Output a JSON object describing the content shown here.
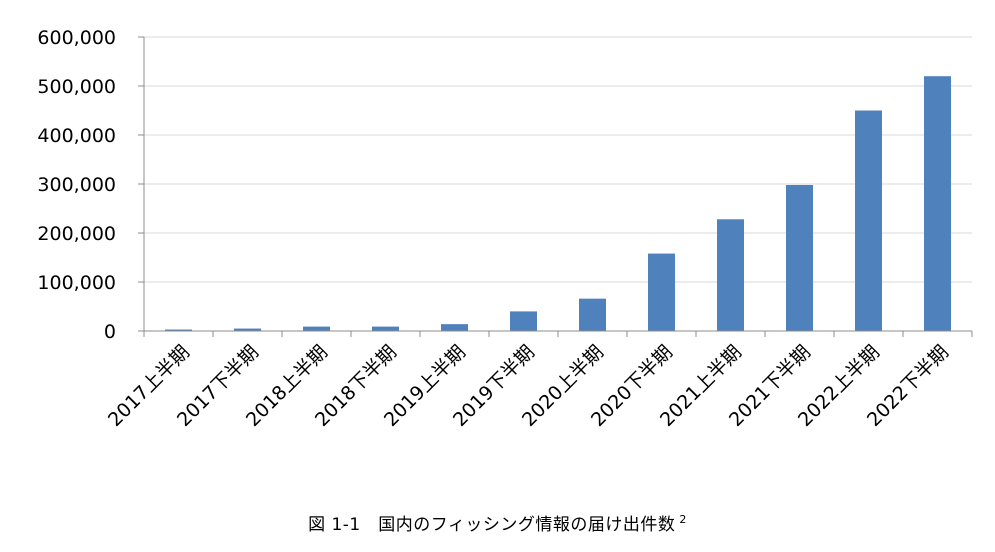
{
  "chart_data": {
    "type": "bar",
    "categories": [
      "2017上半期",
      "2017下半期",
      "2018上半期",
      "2018下半期",
      "2019上半期",
      "2019下半期",
      "2020上半期",
      "2020下半期",
      "2021上半期",
      "2021下半期",
      "2022上半期",
      "2022下半期"
    ],
    "values": [
      3000,
      5000,
      9000,
      9000,
      14000,
      40000,
      66000,
      158000,
      228000,
      298000,
      450000,
      520000
    ],
    "ylim": [
      0,
      600000
    ],
    "yticks": [
      "0",
      "100,000",
      "200,000",
      "300,000",
      "400,000",
      "500,000",
      "600,000"
    ],
    "grid": true,
    "bar_color": "#4f81bd"
  },
  "caption": {
    "label": "図 1-1　国内のフィッシング情報の届け出件数",
    "footnote": "2"
  }
}
